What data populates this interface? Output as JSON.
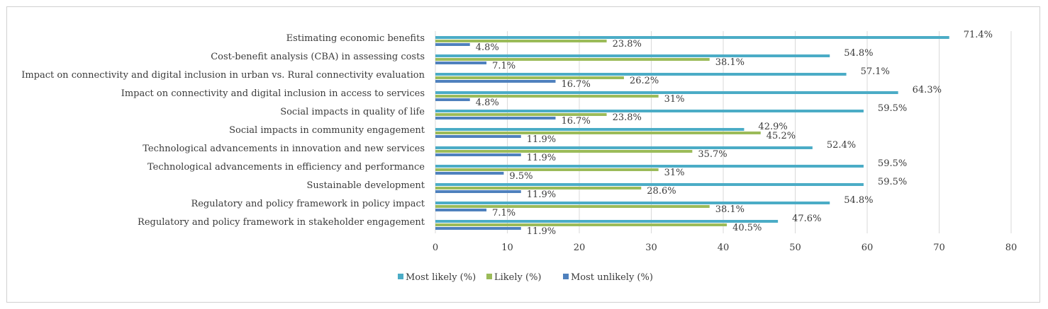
{
  "chart_data": {
    "type": "bar",
    "orientation": "horizontal",
    "categories": [
      "Estimating economic benefits",
      "Cost-benefit analysis (CBA) in assessing costs",
      "Impact on connectivity and digital inclusion in urban vs. Rural connectivity evaluation",
      "Impact on connectivity and digital inclusion in access to services",
      "Social impacts in quality of life",
      "Social impacts in community engagement",
      "Technological advancements in innovation and new services",
      "Technological advancements in efficiency and performance",
      "Sustainable development",
      "Regulatory and policy framework in policy impact",
      "Regulatory and policy framework in stakeholder engagement"
    ],
    "series": [
      {
        "name": "Most likely (%)",
        "color": "#4bacc6",
        "values": [
          71.4,
          54.8,
          57.1,
          64.3,
          59.5,
          42.9,
          52.4,
          59.5,
          59.5,
          54.8,
          47.6
        ],
        "labels": [
          "71.4%",
          "54.8%",
          "57.1%",
          "64.3%",
          "59.5%",
          "42.9%",
          "52.4%",
          "59.5%",
          "59.5%",
          "54.8%",
          "47.6%"
        ]
      },
      {
        "name": "Likely (%)",
        "color": "#9bbb59",
        "values": [
          23.8,
          38.1,
          26.2,
          31,
          23.8,
          45.2,
          35.7,
          31,
          28.6,
          38.1,
          40.5
        ],
        "labels": [
          "23.8%",
          "38.1%",
          "26.2%",
          "31%",
          "23.8%",
          "45.2%",
          "35.7%",
          "31%",
          "28.6%",
          "38.1%",
          "40.5%"
        ]
      },
      {
        "name": "Most unlikely (%)",
        "color": "#4f81bd",
        "values": [
          4.8,
          7.1,
          16.7,
          4.8,
          16.7,
          11.9,
          11.9,
          9.5,
          11.9,
          7.1,
          11.9
        ],
        "labels": [
          "4.8%",
          "7.1%",
          "16.7%",
          "4.8%",
          "16.7%",
          "11.9%",
          "11.9%",
          "9.5%",
          "11.9%",
          "7.1%",
          "11.9%"
        ]
      }
    ],
    "xlim": [
      0,
      80
    ],
    "xticks": [
      0,
      10,
      20,
      30,
      40,
      50,
      60,
      70,
      80
    ],
    "grid": "vertical",
    "legend": "bottom"
  }
}
